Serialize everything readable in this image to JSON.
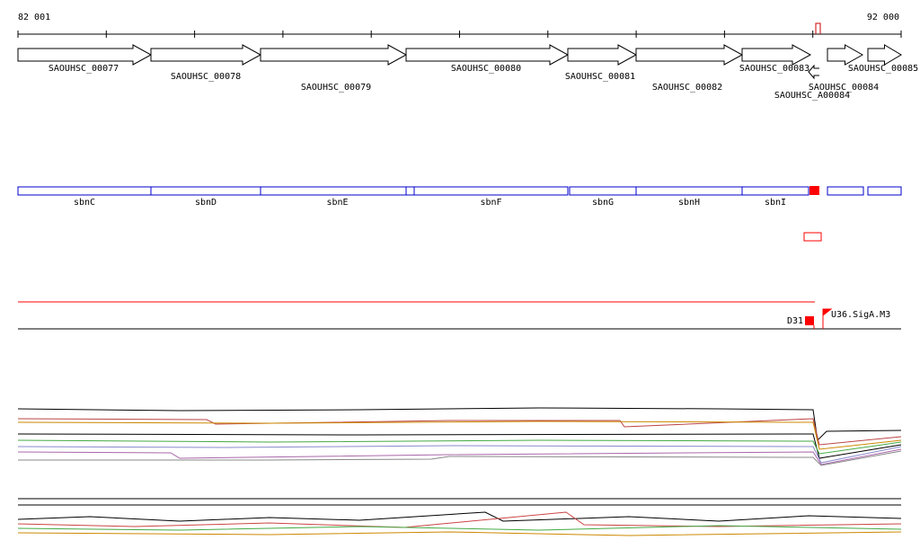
{
  "ruler": {
    "start": "82 001",
    "end": "92 000"
  },
  "genes": [
    "SAOUHSC_00077",
    "SAOUHSC_00078",
    "SAOUHSC_00079",
    "SAOUHSC_00080",
    "SAOUHSC_00081",
    "SAOUHSC_00082",
    "SAOUHSC_00083",
    "SAOUHSC_00084",
    "SAOUHSC_A00084",
    "SAOUHSC_00085"
  ],
  "operons": [
    "sbnC",
    "sbnD",
    "sbnE",
    "sbnF",
    "sbnG",
    "sbnH",
    "sbnI"
  ],
  "features": [
    "D31",
    "U36.SigA.M3"
  ]
}
